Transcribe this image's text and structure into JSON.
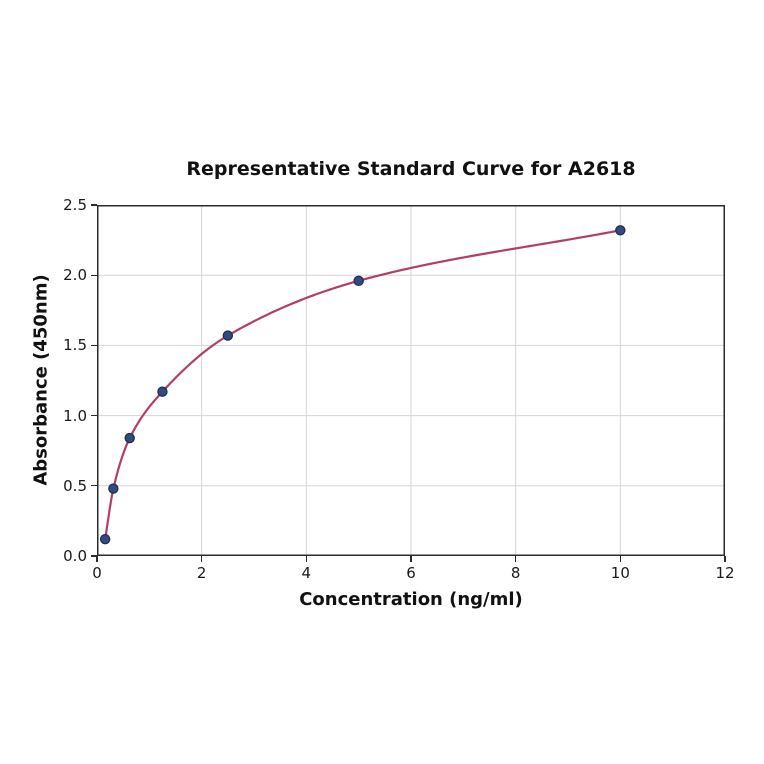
{
  "chart_data": {
    "type": "line",
    "title": "Representative Standard Curve for A2618",
    "xlabel": "Concentration (ng/ml)",
    "ylabel": "Absorbance (450nm)",
    "x": [
      0.156,
      0.3125,
      0.625,
      1.25,
      2.5,
      5,
      10
    ],
    "y": [
      0.12,
      0.48,
      0.84,
      1.17,
      1.57,
      1.96,
      2.32
    ],
    "xlim": [
      0,
      12
    ],
    "ylim": [
      0,
      2.5
    ],
    "xticks": [
      0,
      2,
      4,
      6,
      8,
      10,
      12
    ],
    "xtick_labels": [
      "0",
      "2",
      "4",
      "6",
      "8",
      "10",
      "12"
    ],
    "yticks": [
      0,
      0.5,
      1,
      1.5,
      2,
      2.5
    ],
    "ytick_labels": [
      "0.0",
      "0.5",
      "1.0",
      "1.5",
      "2.0",
      "2.5"
    ],
    "grid": true,
    "legend_position": "none",
    "colors": {
      "line": "#b23f63",
      "marker": "#324a7d",
      "marker_edge": "#1c2a50",
      "grid": "#d6d6d6",
      "axis": "#2b2b2b",
      "text": "#111111"
    }
  }
}
